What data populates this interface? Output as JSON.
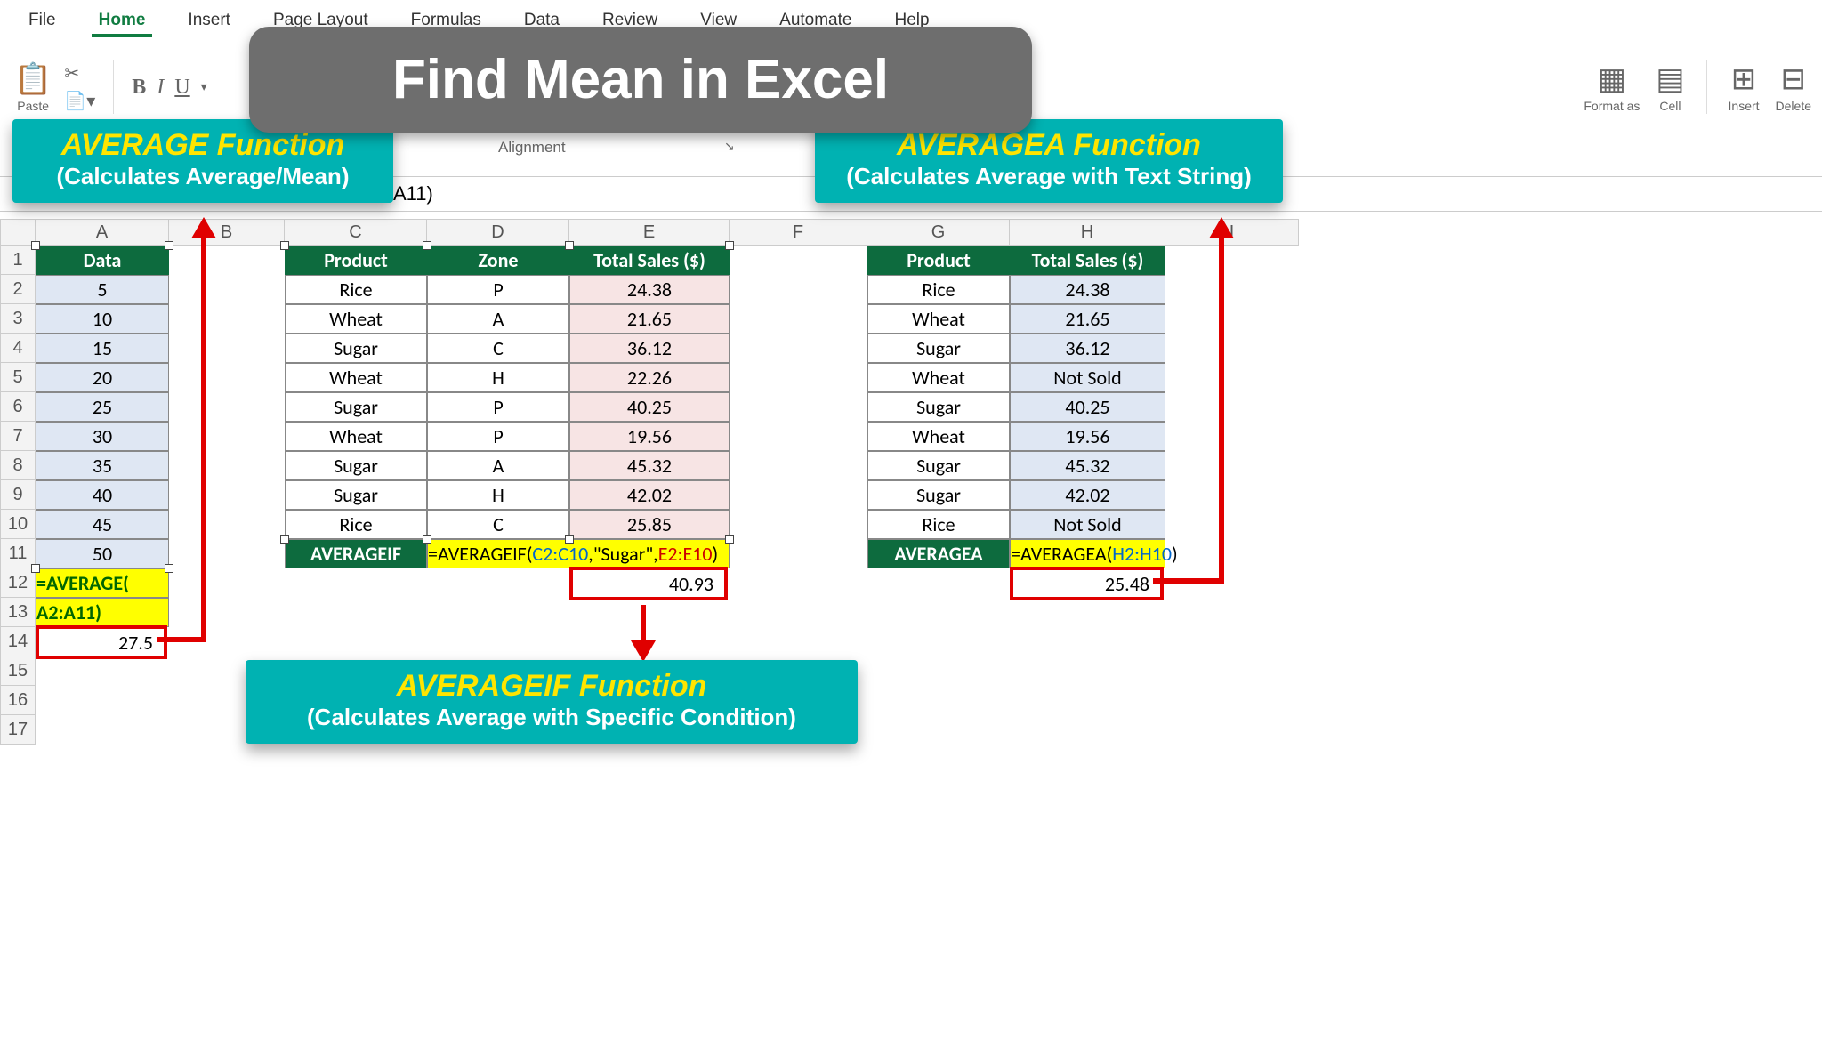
{
  "ribbon": {
    "menus": [
      "File",
      "Home",
      "Insert",
      "Page Layout",
      "Formulas",
      "Data",
      "Review",
      "View",
      "Automate",
      "Help"
    ],
    "active": "Home",
    "paste_label": "Paste",
    "formatas_label": "Format as",
    "cell_label": "Cell",
    "insert_label": "Insert",
    "delete_label": "Delete",
    "alignment_label": "Alignment"
  },
  "title_banner": "Find Mean in Excel",
  "callouts": {
    "avg": {
      "title": "AVERAGE Function",
      "sub": "(Calculates Average/Mean)"
    },
    "avgif": {
      "title": "AVERAGEIF Function",
      "sub": "(Calculates Average with Specific Condition)"
    },
    "avga": {
      "title": "AVERAGEA Function",
      "sub": "(Calculates Average with Text String)"
    }
  },
  "formula_bar": "A11)",
  "columns": {
    "widths": {
      "A": 150,
      "B": 130,
      "C": 160,
      "D": 160,
      "E": 180,
      "F": 155,
      "G": 160,
      "H": 175,
      "I": 150
    },
    "labels": [
      "A",
      "B",
      "C",
      "D",
      "E",
      "F",
      "G",
      "H",
      "I"
    ]
  },
  "row_count": 17,
  "avg_table": {
    "header": "Data",
    "values": [
      "5",
      "10",
      "15",
      "20",
      "25",
      "30",
      "35",
      "40",
      "45",
      "50"
    ],
    "formula_line1": "=AVERAGE(",
    "formula_line2": "A2:A11)",
    "result": "27.5"
  },
  "avgif_table": {
    "headers": [
      "Product",
      "Zone",
      "Total Sales ($)"
    ],
    "rows": [
      [
        "Rice",
        "P",
        "24.38"
      ],
      [
        "Wheat",
        "A",
        "21.65"
      ],
      [
        "Sugar",
        "C",
        "36.12"
      ],
      [
        "Wheat",
        "H",
        "22.26"
      ],
      [
        "Sugar",
        "P",
        "40.25"
      ],
      [
        "Wheat",
        "P",
        "19.56"
      ],
      [
        "Sugar",
        "A",
        "45.32"
      ],
      [
        "Sugar",
        "H",
        "42.02"
      ],
      [
        "Rice",
        "C",
        "25.85"
      ]
    ],
    "label": "AVERAGEIF",
    "formula_pre": "=AVERAGEIF(",
    "formula_range1": "C2:C10",
    "formula_cond": ",\"Sugar\",",
    "formula_range2": "E2:E10",
    "formula_post": ")",
    "result": "40.93"
  },
  "avga_table": {
    "headers": [
      "Product",
      "Total Sales ($)"
    ],
    "rows": [
      [
        "Rice",
        "24.38"
      ],
      [
        "Wheat",
        "21.65"
      ],
      [
        "Sugar",
        "36.12"
      ],
      [
        "Wheat",
        "Not Sold"
      ],
      [
        "Sugar",
        "40.25"
      ],
      [
        "Wheat",
        "19.56"
      ],
      [
        "Sugar",
        "45.32"
      ],
      [
        "Sugar",
        "42.02"
      ],
      [
        "Rice",
        "Not Sold"
      ]
    ],
    "label": "AVERAGEA",
    "formula_pre": "=AVERAGEA(",
    "formula_range": "H2:H10",
    "formula_post": ")",
    "result": "25.48"
  },
  "colors": {
    "header_green": "#0d6b3e",
    "teal": "#00b2b2",
    "yellow": "#ffff00",
    "highlight_yellow_text": "#ffe500",
    "red": "#e00000",
    "light_blue": "#dfe7f3",
    "light_pink": "#f7e4e4",
    "banner_gray": "#6e6e6e"
  }
}
